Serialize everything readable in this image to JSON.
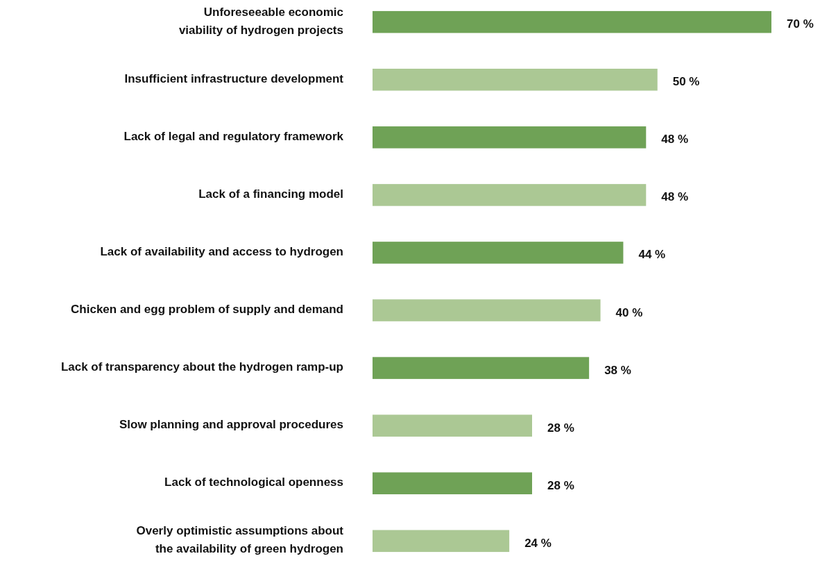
{
  "chart_data": {
    "type": "bar",
    "orientation": "horizontal",
    "categories": [
      "Unforeseeable economic viability of hydrogen projects",
      "Insufficient infrastructure development",
      "Lack of legal and regulatory framework",
      "Lack of a financing model",
      "Lack of availability and access to hydrogen",
      "Chicken and egg problem of supply and demand",
      "Lack of transparency about the hydrogen ramp-up",
      "Slow planning and approval procedures",
      "Lack of technological openness",
      "Overly optimistic assumptions about the availability of green hydrogen"
    ],
    "values": [
      70,
      50,
      48,
      48,
      44,
      40,
      38,
      28,
      28,
      24
    ],
    "value_labels": [
      "70 %",
      "50 %",
      "48 %",
      "48 %",
      "44 %",
      "40 %",
      "38 %",
      "28 %",
      "28 %",
      "24 %"
    ],
    "colors": [
      "#6fa256",
      "#abc894",
      "#6fa256",
      "#abc894",
      "#6fa256",
      "#abc894",
      "#6fa256",
      "#abc894",
      "#6fa256",
      "#abc894"
    ]
  }
}
